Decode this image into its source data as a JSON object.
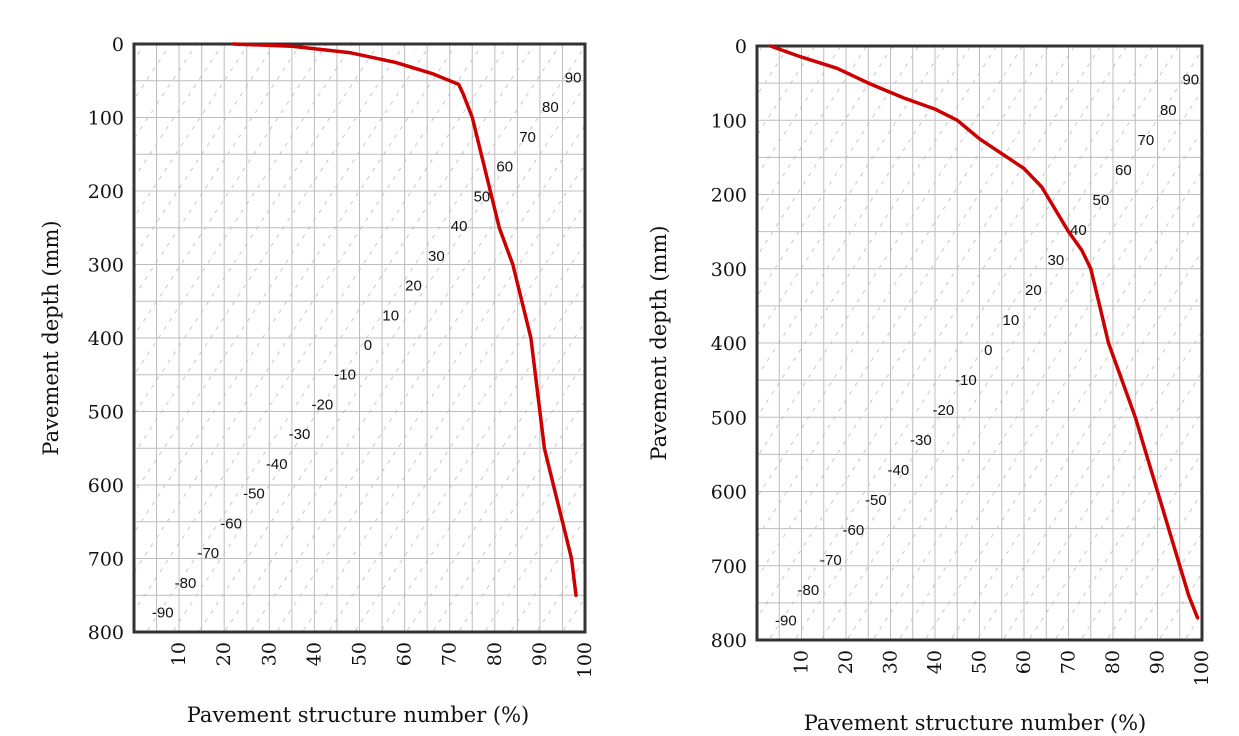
{
  "chart_data": [
    {
      "type": "line",
      "xlabel": "Pavement structure number (%)",
      "ylabel": "Pavement depth (mm)",
      "xlim": [
        0,
        100
      ],
      "ylim": [
        0,
        800
      ],
      "y_inverted": true,
      "x_ticks": [
        "10",
        "20",
        "30",
        "40",
        "50",
        "60",
        "70",
        "80",
        "90",
        "100"
      ],
      "y_ticks": [
        "0",
        "100",
        "200",
        "300",
        "400",
        "500",
        "600",
        "700",
        "800"
      ],
      "grid": true,
      "diagonal_labels": [
        "90",
        "80",
        "70",
        "60",
        "50",
        "40",
        "30",
        "20",
        "10",
        "0",
        "-10",
        "-20",
        "-30",
        "-40",
        "-50",
        "-60",
        "-70",
        "-80",
        "-90"
      ],
      "series": [
        {
          "color": "#cc0000",
          "x": [
            22,
            35,
            48,
            58,
            66,
            72,
            73,
            75,
            77,
            79,
            81,
            84,
            86,
            88,
            89,
            90,
            91,
            93,
            95,
            97,
            98
          ],
          "y": [
            0,
            3,
            12,
            25,
            40,
            55,
            68,
            100,
            150,
            200,
            250,
            300,
            350,
            400,
            450,
            500,
            550,
            600,
            650,
            700,
            750
          ]
        }
      ]
    },
    {
      "type": "line",
      "xlabel": "Pavement structure number (%)",
      "ylabel": "Pavement depth (mm)",
      "xlim": [
        0,
        100
      ],
      "ylim": [
        0,
        800
      ],
      "y_inverted": true,
      "x_ticks": [
        "10",
        "20",
        "30",
        "40",
        "50",
        "60",
        "70",
        "80",
        "90",
        "100"
      ],
      "y_ticks": [
        "0",
        "100",
        "200",
        "300",
        "400",
        "500",
        "600",
        "700",
        "800"
      ],
      "grid": true,
      "diagonal_labels": [
        "90",
        "80",
        "70",
        "60",
        "50",
        "40",
        "30",
        "20",
        "10",
        "0",
        "-10",
        "-20",
        "-30",
        "-40",
        "-50",
        "-60",
        "-70",
        "-80",
        "-90"
      ],
      "series": [
        {
          "color": "#cc0000",
          "x": [
            3,
            10,
            18,
            25,
            33,
            40,
            45,
            50,
            55,
            60,
            64,
            67,
            70,
            73,
            75,
            77,
            79,
            82,
            85,
            88,
            91,
            94,
            97,
            99
          ],
          "y": [
            0,
            15,
            30,
            50,
            70,
            85,
            100,
            125,
            145,
            165,
            190,
            220,
            250,
            275,
            300,
            350,
            400,
            450,
            500,
            560,
            620,
            680,
            740,
            770
          ]
        }
      ]
    }
  ]
}
